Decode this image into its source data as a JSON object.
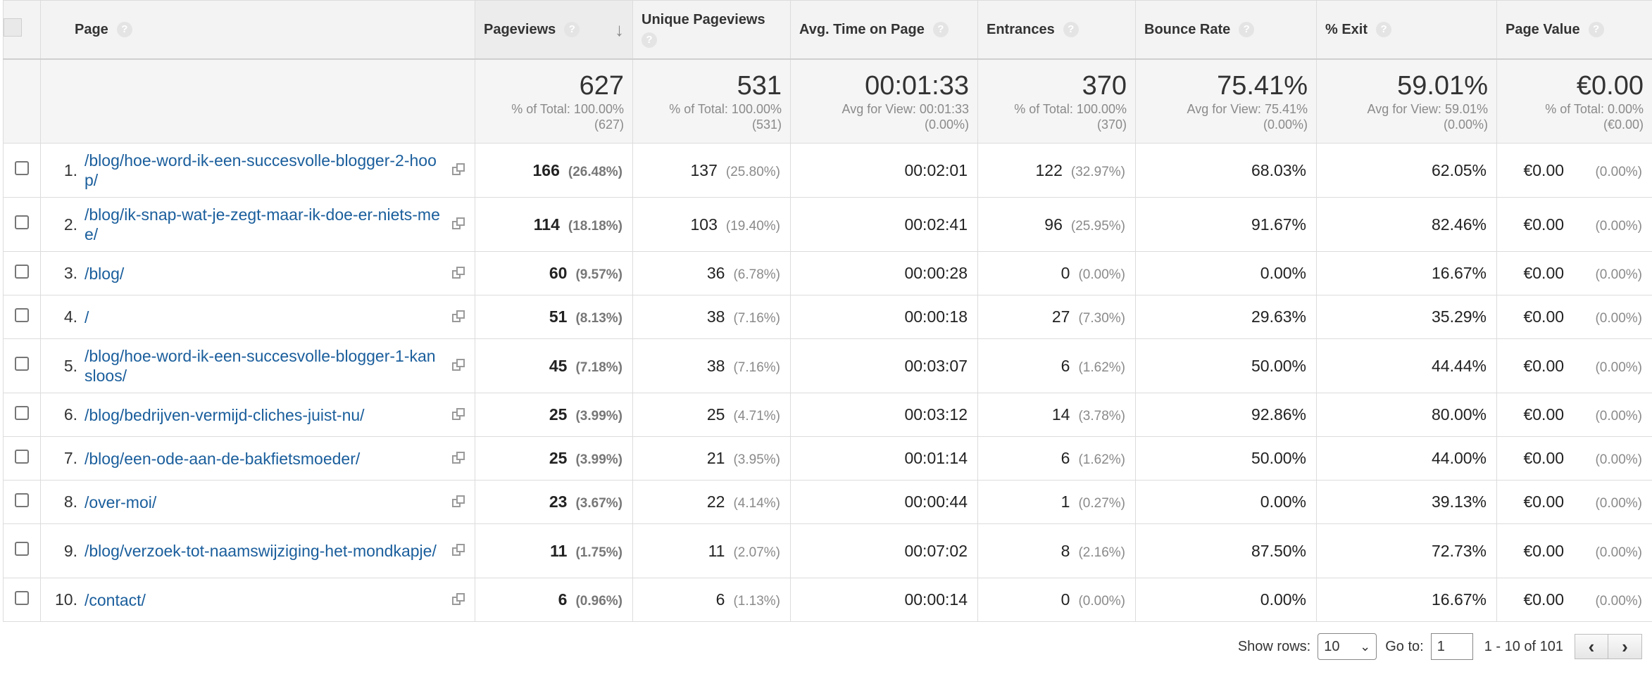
{
  "headers": {
    "page": "Page",
    "pageviews": "Pageviews",
    "unique": "Unique Pageviews",
    "avg_time": "Avg. Time on Page",
    "entrances": "Entrances",
    "bounce": "Bounce Rate",
    "exit": "% Exit",
    "value": "Page Value",
    "help": "?",
    "sort_arrow": "↓"
  },
  "totals": {
    "pageviews": {
      "big": "627",
      "line1": "% of Total: 100.00%",
      "line2": "(627)"
    },
    "unique": {
      "big": "531",
      "line1": "% of Total: 100.00%",
      "line2": "(531)"
    },
    "avg_time": {
      "big": "00:01:33",
      "line1": "Avg for View: 00:01:33",
      "line2": "(0.00%)"
    },
    "entrances": {
      "big": "370",
      "line1": "% of Total: 100.00%",
      "line2": "(370)"
    },
    "bounce": {
      "big": "75.41%",
      "line1": "Avg for View: 75.41%",
      "line2": "(0.00%)"
    },
    "exit": {
      "big": "59.01%",
      "line1": "Avg for View: 59.01%",
      "line2": "(0.00%)"
    },
    "value": {
      "big": "€0.00",
      "line1": "% of Total: 0.00%",
      "line2": "(€0.00)"
    }
  },
  "rows": [
    {
      "idx": "1.",
      "page": "/blog/hoe-word-ik-een-succesvolle-blogger-2-hoop/",
      "pv": "166",
      "pv_pct": "(26.48%)",
      "upv": "137",
      "upv_pct": "(25.80%)",
      "time": "00:02:01",
      "ent": "122",
      "ent_pct": "(32.97%)",
      "bounce": "68.03%",
      "exit": "62.05%",
      "value": "€0.00",
      "value_pct": "(0.00%)"
    },
    {
      "idx": "2.",
      "page": "/blog/ik-snap-wat-je-zegt-maar-ik-doe-er-niets-mee/",
      "pv": "114",
      "pv_pct": "(18.18%)",
      "upv": "103",
      "upv_pct": "(19.40%)",
      "time": "00:02:41",
      "ent": "96",
      "ent_pct": "(25.95%)",
      "bounce": "91.67%",
      "exit": "82.46%",
      "value": "€0.00",
      "value_pct": "(0.00%)"
    },
    {
      "idx": "3.",
      "page": "/blog/",
      "pv": "60",
      "pv_pct": "(9.57%)",
      "upv": "36",
      "upv_pct": "(6.78%)",
      "time": "00:00:28",
      "ent": "0",
      "ent_pct": "(0.00%)",
      "bounce": "0.00%",
      "exit": "16.67%",
      "value": "€0.00",
      "value_pct": "(0.00%)"
    },
    {
      "idx": "4.",
      "page": "/",
      "pv": "51",
      "pv_pct": "(8.13%)",
      "upv": "38",
      "upv_pct": "(7.16%)",
      "time": "00:00:18",
      "ent": "27",
      "ent_pct": "(7.30%)",
      "bounce": "29.63%",
      "exit": "35.29%",
      "value": "€0.00",
      "value_pct": "(0.00%)"
    },
    {
      "idx": "5.",
      "page": "/blog/hoe-word-ik-een-succesvolle-blogger-1-kansloos/",
      "pv": "45",
      "pv_pct": "(7.18%)",
      "upv": "38",
      "upv_pct": "(7.16%)",
      "time": "00:03:07",
      "ent": "6",
      "ent_pct": "(1.62%)",
      "bounce": "50.00%",
      "exit": "44.44%",
      "value": "€0.00",
      "value_pct": "(0.00%)"
    },
    {
      "idx": "6.",
      "page": "/blog/bedrijven-vermijd-cliches-juist-nu/",
      "pv": "25",
      "pv_pct": "(3.99%)",
      "upv": "25",
      "upv_pct": "(4.71%)",
      "time": "00:03:12",
      "ent": "14",
      "ent_pct": "(3.78%)",
      "bounce": "92.86%",
      "exit": "80.00%",
      "value": "€0.00",
      "value_pct": "(0.00%)"
    },
    {
      "idx": "7.",
      "page": "/blog/een-ode-aan-de-bakfietsmoeder/",
      "pv": "25",
      "pv_pct": "(3.99%)",
      "upv": "21",
      "upv_pct": "(3.95%)",
      "time": "00:01:14",
      "ent": "6",
      "ent_pct": "(1.62%)",
      "bounce": "50.00%",
      "exit": "44.00%",
      "value": "€0.00",
      "value_pct": "(0.00%)"
    },
    {
      "idx": "8.",
      "page": "/over-moi/",
      "pv": "23",
      "pv_pct": "(3.67%)",
      "upv": "22",
      "upv_pct": "(4.14%)",
      "time": "00:00:44",
      "ent": "1",
      "ent_pct": "(0.27%)",
      "bounce": "0.00%",
      "exit": "39.13%",
      "value": "€0.00",
      "value_pct": "(0.00%)"
    },
    {
      "idx": "9.",
      "page": "/blog/verzoek-tot-naamswijziging-het-mondkapje/",
      "pv": "11",
      "pv_pct": "(1.75%)",
      "upv": "11",
      "upv_pct": "(2.07%)",
      "time": "00:07:02",
      "ent": "8",
      "ent_pct": "(2.16%)",
      "bounce": "87.50%",
      "exit": "72.73%",
      "value": "€0.00",
      "value_pct": "(0.00%)"
    },
    {
      "idx": "10.",
      "page": "/contact/",
      "pv": "6",
      "pv_pct": "(0.96%)",
      "upv": "6",
      "upv_pct": "(1.13%)",
      "time": "00:00:14",
      "ent": "0",
      "ent_pct": "(0.00%)",
      "bounce": "0.00%",
      "exit": "16.67%",
      "value": "€0.00",
      "value_pct": "(0.00%)"
    }
  ],
  "footer": {
    "show_rows_label": "Show rows:",
    "show_rows_value": "10",
    "goto_label": "Go to:",
    "goto_value": "1",
    "range": "1 - 10 of 101",
    "prev": "‹",
    "next": "›"
  },
  "icons": {
    "external": "open-in-new-window-icon",
    "sort": "sort-descending-icon"
  },
  "colors": {
    "link": "#1a5e9c",
    "header_bg": "#f3f3f3",
    "muted": "#8a8a8a"
  }
}
